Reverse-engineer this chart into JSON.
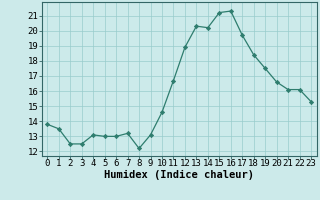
{
  "x": [
    0,
    1,
    2,
    3,
    4,
    5,
    6,
    7,
    8,
    9,
    10,
    11,
    12,
    13,
    14,
    15,
    16,
    17,
    18,
    19,
    20,
    21,
    22,
    23
  ],
  "y": [
    13.8,
    13.5,
    12.5,
    12.5,
    13.1,
    13.0,
    13.0,
    13.2,
    12.2,
    13.1,
    14.6,
    16.7,
    18.9,
    20.3,
    20.2,
    21.2,
    21.3,
    19.7,
    18.4,
    17.5,
    16.6,
    16.1,
    16.1,
    15.3
  ],
  "line_color": "#2e7d6e",
  "marker": "D",
  "marker_size": 2.2,
  "bg_color": "#cceaea",
  "grid_color": "#99cccc",
  "xlabel": "Humidex (Indice chaleur)",
  "ylabel_ticks": [
    12,
    13,
    14,
    15,
    16,
    17,
    18,
    19,
    20,
    21
  ],
  "ylim": [
    11.7,
    21.9
  ],
  "xlim": [
    -0.5,
    23.5
  ],
  "xtick_labels": [
    "0",
    "1",
    "2",
    "3",
    "4",
    "5",
    "6",
    "7",
    "8",
    "9",
    "10",
    "11",
    "12",
    "13",
    "14",
    "15",
    "16",
    "17",
    "18",
    "19",
    "20",
    "21",
    "22",
    "23"
  ],
  "label_fontsize": 7.5,
  "tick_fontsize": 6.5
}
